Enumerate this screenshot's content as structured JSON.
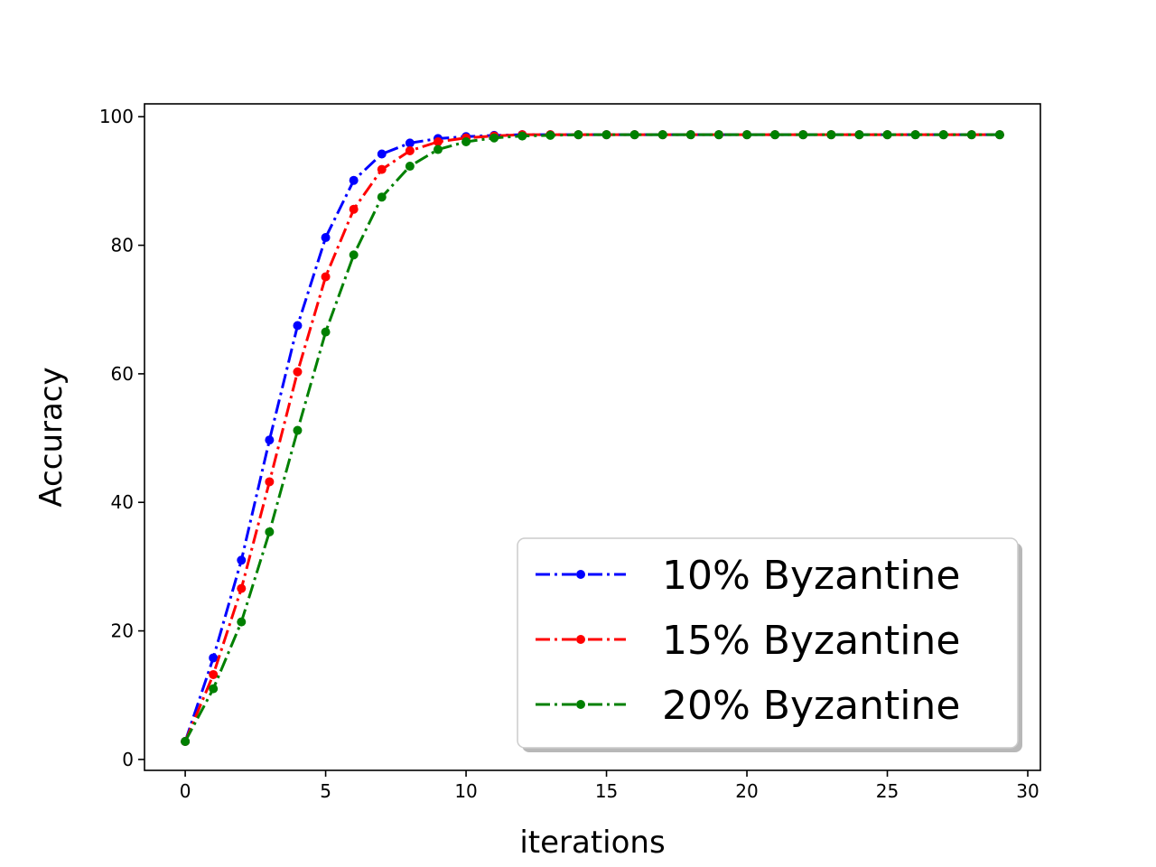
{
  "chart_data": {
    "type": "line",
    "xlabel": "iterations",
    "ylabel": "Accuracy",
    "xlim": [
      -1.45,
      30.45
    ],
    "ylim": [
      -1.7,
      102
    ],
    "xticks": [
      0,
      5,
      10,
      15,
      20,
      25,
      30
    ],
    "yticks": [
      0,
      20,
      40,
      60,
      80,
      100
    ],
    "grid": false,
    "legend_placement": "lower-right",
    "x": [
      0,
      1,
      2,
      3,
      4,
      5,
      6,
      7,
      8,
      9,
      10,
      11,
      12,
      13,
      14,
      15,
      16,
      17,
      18,
      19,
      20,
      21,
      22,
      23,
      24,
      25,
      26,
      27,
      28,
      29
    ],
    "series": [
      {
        "name": "10% Byzantine",
        "color": "#0000ff",
        "values": [
          2.8,
          15.8,
          31.0,
          49.7,
          67.5,
          81.2,
          90.1,
          94.2,
          95.9,
          96.6,
          96.9,
          97.1,
          97.2,
          97.2,
          97.2,
          97.2,
          97.2,
          97.2,
          97.2,
          97.2,
          97.2,
          97.2,
          97.2,
          97.2,
          97.2,
          97.2,
          97.2,
          97.2,
          97.2,
          97.2
        ]
      },
      {
        "name": "15% Byzantine",
        "color": "#ff0000",
        "values": [
          2.8,
          13.2,
          26.6,
          43.2,
          60.3,
          75.1,
          85.6,
          91.8,
          94.7,
          96.1,
          96.7,
          97.0,
          97.2,
          97.2,
          97.2,
          97.2,
          97.2,
          97.2,
          97.2,
          97.2,
          97.2,
          97.2,
          97.2,
          97.2,
          97.2,
          97.2,
          97.2,
          97.2,
          97.2,
          97.2
        ]
      },
      {
        "name": "20% Byzantine",
        "color": "#008000",
        "values": [
          2.8,
          11.0,
          21.4,
          35.4,
          51.2,
          66.5,
          78.5,
          87.5,
          92.3,
          94.9,
          96.1,
          96.7,
          97.0,
          97.1,
          97.2,
          97.2,
          97.2,
          97.2,
          97.2,
          97.2,
          97.2,
          97.2,
          97.2,
          97.2,
          97.2,
          97.2,
          97.2,
          97.2,
          97.2,
          97.2
        ]
      }
    ]
  }
}
